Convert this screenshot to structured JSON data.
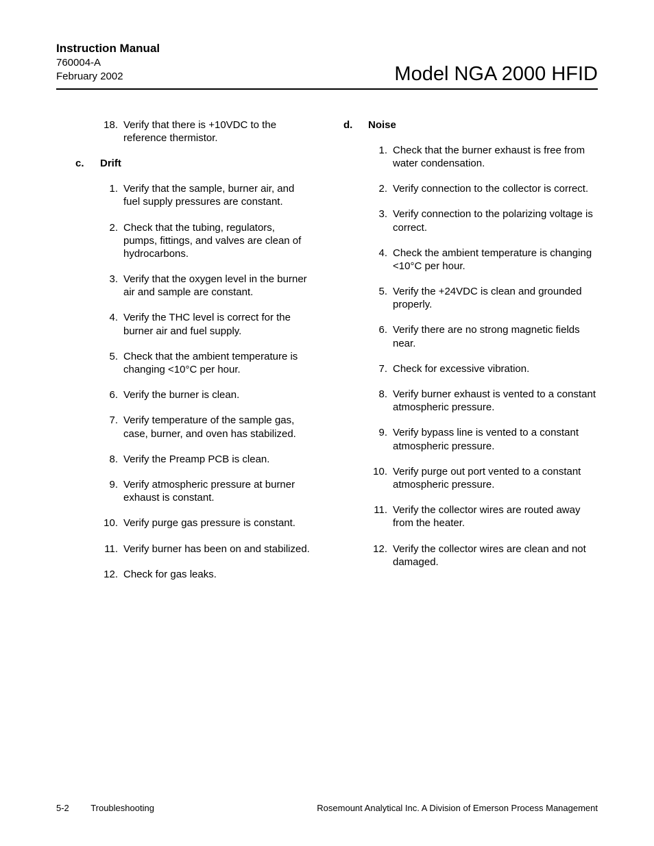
{
  "header": {
    "manual_title": "Instruction Manual",
    "doc_number": "760004-A",
    "doc_date": "February 2002",
    "model_title": "Model NGA 2000 HFID"
  },
  "col1": {
    "pre_items": [
      {
        "n": "18.",
        "t": "Verify that there is +10VDC to the reference thermistor."
      }
    ],
    "section_letter": "c.",
    "section_title": "Drift",
    "items": [
      {
        "n": "1.",
        "t": "Verify that the sample, burner air, and fuel supply pressures are constant."
      },
      {
        "n": "2.",
        "t": "Check that the tubing, regulators, pumps, fittings, and valves are clean of hydrocarbons."
      },
      {
        "n": "3.",
        "t": "Verify that the oxygen level in the burner air and sample are constant."
      },
      {
        "n": "4.",
        "t": "Verify the THC level is correct for the burner air and fuel supply."
      },
      {
        "n": "5.",
        "t": "Check that the ambient temperature is changing <10°C per hour."
      },
      {
        "n": "6.",
        "t": "Verify the burner is clean."
      },
      {
        "n": "7.",
        "t": "Verify temperature of the sample gas, case, burner, and oven has stabilized."
      },
      {
        "n": "8.",
        "t": "Verify the Preamp PCB is clean."
      },
      {
        "n": "9.",
        "t": "Verify atmospheric pressure at burner exhaust is constant."
      },
      {
        "n": "10.",
        "t": "Verify purge gas pressure is constant."
      },
      {
        "n": "11.",
        "t": "Verify burner has been on and stabilized."
      },
      {
        "n": "12.",
        "t": "Check for gas leaks."
      }
    ]
  },
  "col2": {
    "section_letter": "d.",
    "section_title": "Noise",
    "items": [
      {
        "n": "1.",
        "t": "Check that the burner exhaust is free from water condensation."
      },
      {
        "n": "2.",
        "t": "Verify connection to the collector is correct."
      },
      {
        "n": "3.",
        "t": "Verify connection to the polarizing voltage is correct."
      },
      {
        "n": "4.",
        "t": "Check the ambient temperature is changing <10°C per hour."
      },
      {
        "n": "5.",
        "t": "Verify the +24VDC is clean and grounded properly."
      },
      {
        "n": "6.",
        "t": "Verify there are no strong magnetic fields near."
      },
      {
        "n": "7.",
        "t": "Check for excessive vibration."
      },
      {
        "n": "8.",
        "t": "Verify burner exhaust is vented to a constant atmospheric pressure."
      },
      {
        "n": "9.",
        "t": "Verify bypass line is vented to a constant atmospheric pressure."
      },
      {
        "n": "10.",
        "t": "Verify purge out port vented to a constant atmospheric pressure."
      },
      {
        "n": "11.",
        "t": "Verify the collector wires are routed away from the heater."
      },
      {
        "n": "12.",
        "t": "Verify the collector wires are clean and not damaged."
      }
    ]
  },
  "footer": {
    "page_number": "5-2",
    "section_name": "Troubleshooting",
    "company": "Rosemount Analytical Inc.    A Division of Emerson Process Management"
  }
}
